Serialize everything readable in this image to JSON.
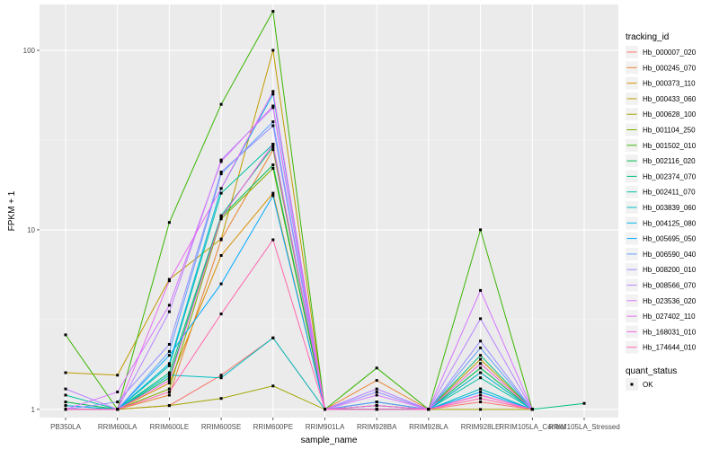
{
  "chart_data": {
    "type": "line",
    "title": "",
    "xlabel": "sample_name",
    "ylabel": "FPKM + 1",
    "y_scale": "log10",
    "ylim": [
      0.9,
      180
    ],
    "y_ticks": [
      1,
      10,
      100
    ],
    "y_tick_labels": [
      "1",
      "10",
      "100"
    ],
    "grid": true,
    "legend_placement": "right",
    "categories": [
      "PB350LA",
      "RRIM600LA",
      "RRIM600LE",
      "RRIM600SE",
      "RRIM600PE",
      "RRIM901LA",
      "RRIM928BA",
      "RRIM928LA",
      "RRIM928LE",
      "RRIM105LA_Control",
      "RRIM105LA_Stressed"
    ],
    "legend": {
      "title": "tracking_id",
      "quant_status_title": "quant_status",
      "quant_status_label": "OK"
    },
    "series": [
      {
        "name": "Hb_000007_020",
        "color": "#F8766D",
        "values": [
          1.0,
          1.0,
          1.05,
          1.55,
          2.5,
          1.0,
          1.0,
          1.0,
          1.1,
          1.0,
          null
        ]
      },
      {
        "name": "Hb_000245_070",
        "color": "#EA8331",
        "values": [
          1.0,
          1.0,
          1.2,
          8.8,
          28.0,
          1.0,
          1.45,
          1.0,
          1.2,
          1.0,
          null
        ]
      },
      {
        "name": "Hb_000373_110",
        "color": "#D89000",
        "values": [
          1.0,
          1.0,
          1.4,
          7.2,
          16.0,
          1.0,
          1.05,
          1.0,
          1.8,
          1.0,
          null
        ]
      },
      {
        "name": "Hb_000433_060",
        "color": "#C09B00",
        "values": [
          1.6,
          1.55,
          5.3,
          8.9,
          100.0,
          1.0,
          1.1,
          1.0,
          1.9,
          1.0,
          null
        ]
      },
      {
        "name": "Hb_000628_100",
        "color": "#A3A500",
        "values": [
          1.0,
          1.0,
          1.05,
          1.15,
          1.35,
          1.0,
          1.0,
          1.0,
          1.0,
          1.0,
          null
        ]
      },
      {
        "name": "Hb_001104_250",
        "color": "#7CAE00",
        "values": [
          1.0,
          1.0,
          1.3,
          11.5,
          22.0,
          1.0,
          1.0,
          1.0,
          1.6,
          1.0,
          null
        ]
      },
      {
        "name": "Hb_001502_010",
        "color": "#39B600",
        "values": [
          2.6,
          1.0,
          11.0,
          50.0,
          165.0,
          1.0,
          1.7,
          1.0,
          10.0,
          1.0,
          null
        ]
      },
      {
        "name": "Hb_002116_020",
        "color": "#00BB4E",
        "values": [
          1.1,
          1.0,
          1.5,
          11.8,
          23.0,
          1.0,
          1.0,
          1.0,
          1.7,
          1.0,
          null
        ]
      },
      {
        "name": "Hb_002374_070",
        "color": "#00BF7D",
        "values": [
          1.05,
          1.0,
          1.6,
          12.0,
          29.0,
          1.0,
          1.05,
          1.0,
          2.0,
          1.0,
          1.08
        ]
      },
      {
        "name": "Hb_002411_070",
        "color": "#00C1A3",
        "values": [
          1.2,
          1.0,
          1.75,
          16.0,
          30.0,
          1.0,
          1.0,
          1.0,
          1.5,
          1.0,
          null
        ]
      },
      {
        "name": "Hb_003839_060",
        "color": "#00BFC4",
        "values": [
          1.0,
          1.0,
          1.55,
          1.5,
          2.5,
          1.0,
          1.0,
          1.0,
          1.3,
          1.0,
          null
        ]
      },
      {
        "name": "Hb_004125_080",
        "color": "#00B8E7",
        "values": [
          1.05,
          1.0,
          1.8,
          17.0,
          57.0,
          1.0,
          1.1,
          1.0,
          1.6,
          1.0,
          null
        ]
      },
      {
        "name": "Hb_005695_050",
        "color": "#00A9FF",
        "values": [
          1.0,
          1.0,
          2.0,
          5.0,
          15.5,
          1.0,
          1.0,
          1.0,
          1.25,
          1.0,
          null
        ]
      },
      {
        "name": "Hb_006590_040",
        "color": "#619CFF",
        "values": [
          1.0,
          1.0,
          2.1,
          20.5,
          40.0,
          1.0,
          1.1,
          1.0,
          2.2,
          1.0,
          null
        ]
      },
      {
        "name": "Hb_008200_010",
        "color": "#9590FF",
        "values": [
          1.0,
          1.1,
          2.3,
          21.0,
          38.0,
          1.0,
          1.25,
          1.0,
          2.4,
          1.0,
          null
        ]
      },
      {
        "name": "Hb_008566_070",
        "color": "#B983FF",
        "values": [
          1.3,
          1.0,
          3.5,
          24.5,
          48.0,
          1.0,
          1.3,
          1.0,
          3.2,
          1.0,
          null
        ]
      },
      {
        "name": "Hb_023536_020",
        "color": "#D575FE",
        "values": [
          1.0,
          1.25,
          3.8,
          24.0,
          49.0,
          1.0,
          1.2,
          1.0,
          4.6,
          1.0,
          null
        ]
      },
      {
        "name": "Hb_027402_110",
        "color": "#E76BF3",
        "values": [
          1.0,
          1.0,
          5.2,
          17.0,
          59.0,
          1.0,
          1.0,
          1.0,
          1.8,
          1.0,
          null
        ]
      },
      {
        "name": "Hb_168031_010",
        "color": "#F564E3",
        "values": [
          1.0,
          1.0,
          1.45,
          11.7,
          30.0,
          1.0,
          1.05,
          1.0,
          1.2,
          1.0,
          null
        ]
      },
      {
        "name": "Hb_174644_010",
        "color": "#FF65AE",
        "values": [
          1.0,
          1.0,
          1.25,
          3.4,
          8.8,
          1.0,
          1.0,
          1.0,
          1.15,
          1.0,
          null
        ]
      }
    ]
  }
}
